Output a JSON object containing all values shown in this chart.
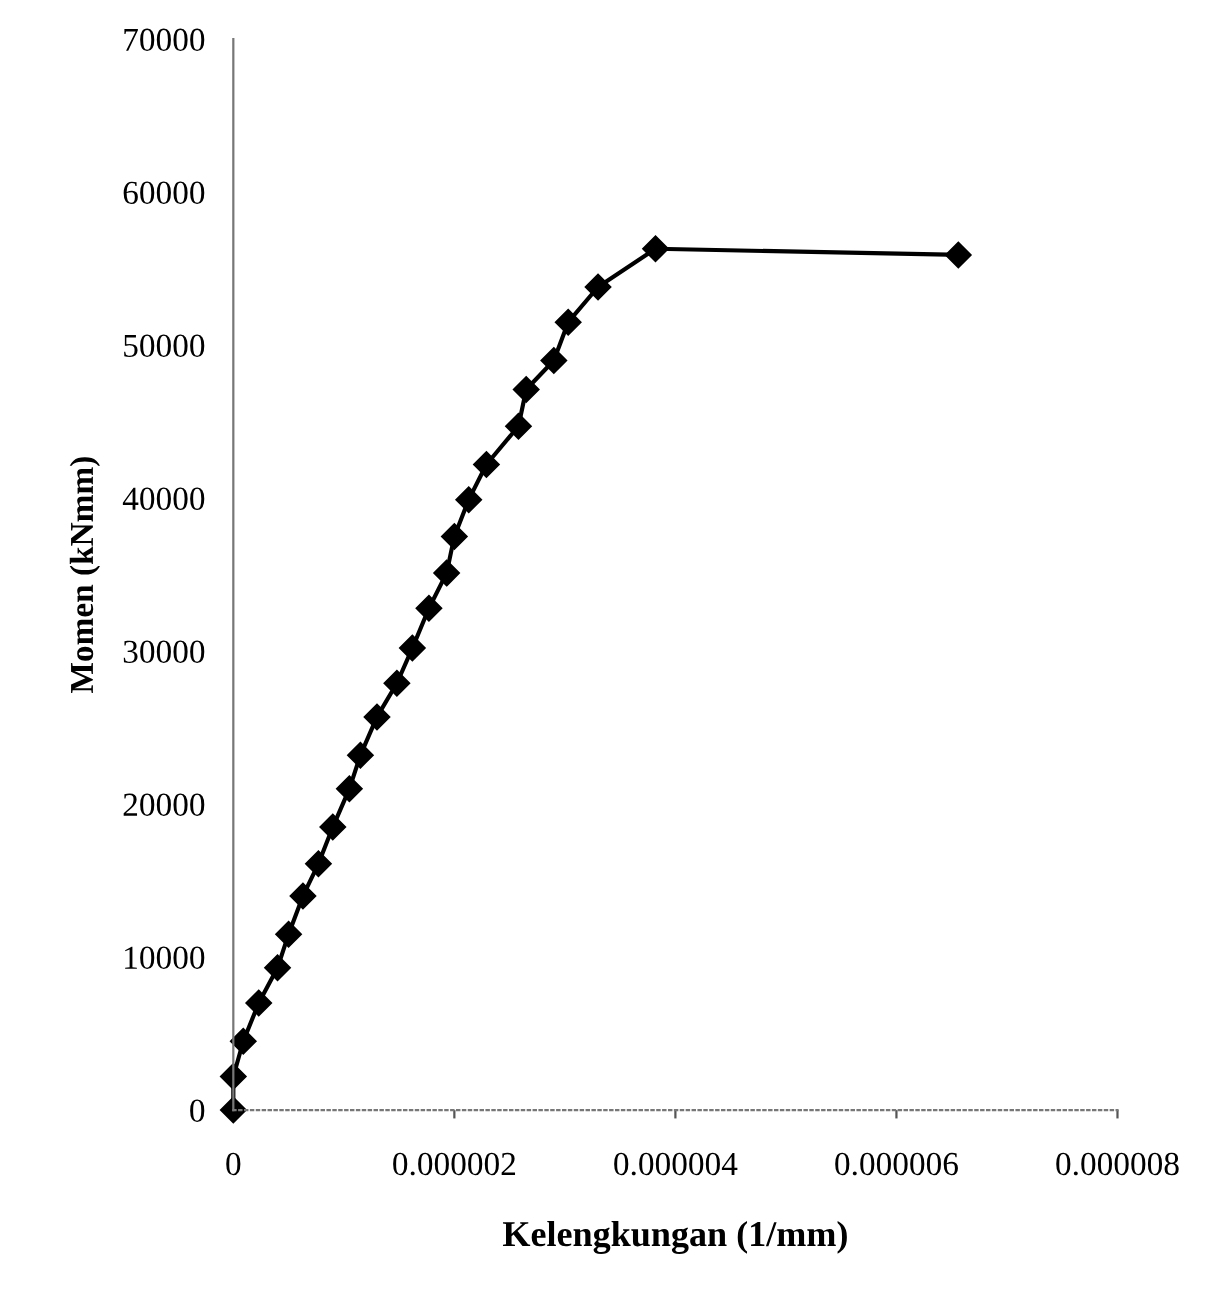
{
  "chart_data": {
    "type": "line",
    "xlabel": "Kelengkungan (1/mm)",
    "ylabel": "Momen (kNmm)",
    "x": [
      0,
      0,
      9e-08,
      2.3e-07,
      4e-07,
      5e-07,
      6.3e-07,
      7.7e-07,
      9e-07,
      1.05e-06,
      1.15e-06,
      1.3e-06,
      1.48e-06,
      1.62e-06,
      1.77e-06,
      1.93e-06,
      2e-06,
      2.13e-06,
      2.29e-06,
      2.58e-06,
      2.65e-06,
      2.9e-06,
      3.03e-06,
      3.3e-06,
      3.82e-06,
      6.56e-06
    ],
    "series": [
      {
        "color": "#000000",
        "values": [
          0,
          2200,
          4500,
          7000,
          9300,
          11500,
          14000,
          16100,
          18500,
          21000,
          23200,
          25700,
          27900,
          30200,
          32800,
          35100,
          37500,
          39900,
          42200,
          44700,
          47100,
          49000,
          51500,
          53800,
          56300,
          55900
        ]
      }
    ],
    "xlim": [
      0,
      8e-06
    ],
    "ylim": [
      0,
      70000
    ],
    "xticks": [
      0,
      {
        "value": 2e-06,
        "label": "0.000002"
      },
      {
        "value": 4e-06,
        "label": "0.000004"
      },
      {
        "value": 6e-06,
        "label": "0.000006"
      },
      {
        "value": 8e-06,
        "label": "0.000008"
      }
    ],
    "yticks": [
      0,
      10000,
      20000,
      30000,
      40000,
      50000,
      60000,
      70000
    ],
    "marker": "diamond",
    "line_style": "solid"
  }
}
